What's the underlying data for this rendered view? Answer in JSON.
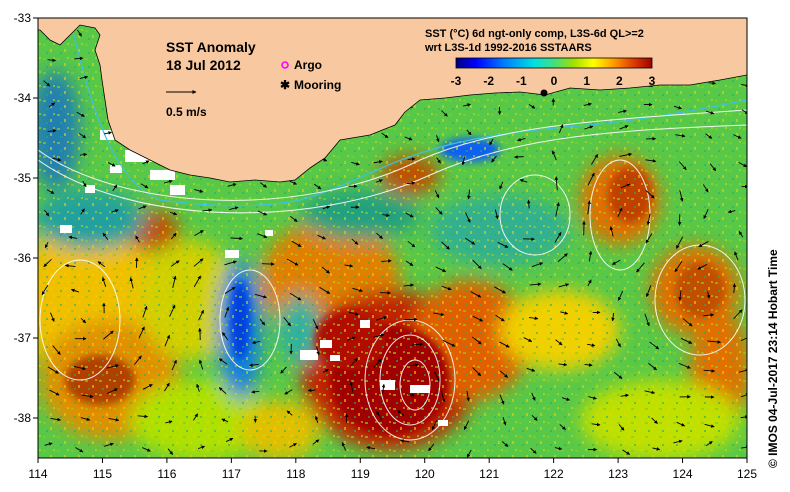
{
  "title": {
    "line1": "SST Anomaly",
    "line2": "18 Jul 2012"
  },
  "legend": {
    "argo_label": "Argo",
    "mooring_label": "Mooring",
    "scale_label": "0.5 m/s",
    "argo_color": "#ff00ff",
    "mooring_color": "#000000"
  },
  "colorbar": {
    "title_line1": "SST (°C) 6d ngt-only comp, L3S-6d QL>=2",
    "title_line2": "wrt L3S-1d 1992-2016 SSTAARS",
    "ticks": [
      "-3",
      "-2",
      "-1",
      "0",
      "1",
      "2",
      "3"
    ],
    "range": [
      -3,
      3
    ],
    "colors": [
      "#000080",
      "#0000ff",
      "#0080ff",
      "#00e0e0",
      "#40e080",
      "#a0e000",
      "#ffff00",
      "#ffc000",
      "#ff8000",
      "#e04000",
      "#a00000"
    ]
  },
  "axes": {
    "lon_ticks": [
      "114",
      "115",
      "116",
      "117",
      "118",
      "119",
      "120",
      "121",
      "122",
      "123",
      "124",
      "125"
    ],
    "lat_ticks": [
      "-33",
      "-34",
      "-35",
      "-36",
      "-37",
      "-38"
    ],
    "lon_range": [
      114,
      125
    ],
    "lat_range": [
      -38.5,
      -33
    ]
  },
  "colors": {
    "land": "#f8c8a0",
    "ocean_base": "#58c848",
    "warm_anomaly": "#b00000",
    "cool_anomaly": "#1060e0",
    "contour": "#ffffff",
    "shelf_line": "#40c0e0"
  },
  "credit": "© IMOS 04-Jul-2017 23:14 Hobart Time"
}
